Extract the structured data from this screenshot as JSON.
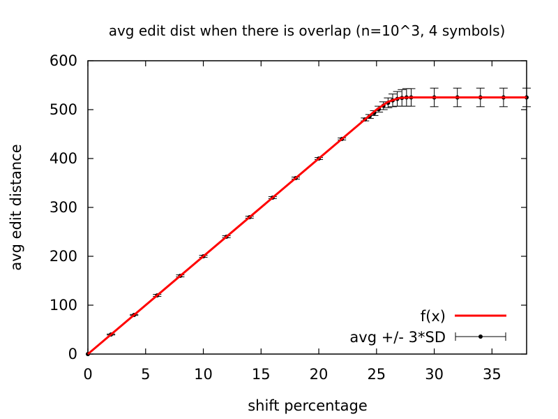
{
  "chart_data": {
    "type": "line",
    "title": "avg edit dist when there is overlap (n=10^3, 4 symbols)",
    "xlabel": "shift percentage",
    "ylabel": "avg edit distance",
    "xlim": [
      0,
      38
    ],
    "ylim": [
      0,
      600
    ],
    "xticks": [
      0,
      5,
      10,
      15,
      20,
      25,
      30,
      35
    ],
    "yticks": [
      0,
      100,
      200,
      300,
      400,
      500,
      600
    ],
    "grid": false,
    "legend_position": "bottom-right",
    "series": [
      {
        "name": "f(x)",
        "kind": "line",
        "color": "#ff0000",
        "x": [
          0,
          24,
          25,
          26,
          27,
          28,
          38
        ],
        "y": [
          0,
          480,
          500,
          516,
          524,
          525,
          525
        ]
      },
      {
        "name": "avg +/- 3*SD",
        "kind": "errorbar",
        "color": "#000000",
        "x": [
          0,
          2,
          4,
          6,
          8,
          10,
          12,
          14,
          16,
          18,
          20,
          22,
          24,
          24.4,
          24.8,
          25.2,
          25.6,
          26.0,
          26.4,
          26.8,
          27.2,
          27.6,
          28,
          30,
          32,
          34,
          36,
          38
        ],
        "y": [
          0,
          40,
          80,
          120,
          160,
          200,
          240,
          280,
          320,
          360,
          400,
          440,
          480,
          486,
          493,
          501,
          508,
          514,
          519,
          522,
          524,
          525,
          525,
          525,
          525,
          525,
          525,
          525
        ],
        "err": [
          0,
          1,
          1,
          2,
          2,
          2,
          2,
          2,
          2,
          2,
          2,
          2,
          3,
          4,
          5,
          6,
          8,
          10,
          13,
          15,
          17,
          18,
          18,
          19,
          19,
          19,
          19,
          19
        ]
      }
    ]
  }
}
